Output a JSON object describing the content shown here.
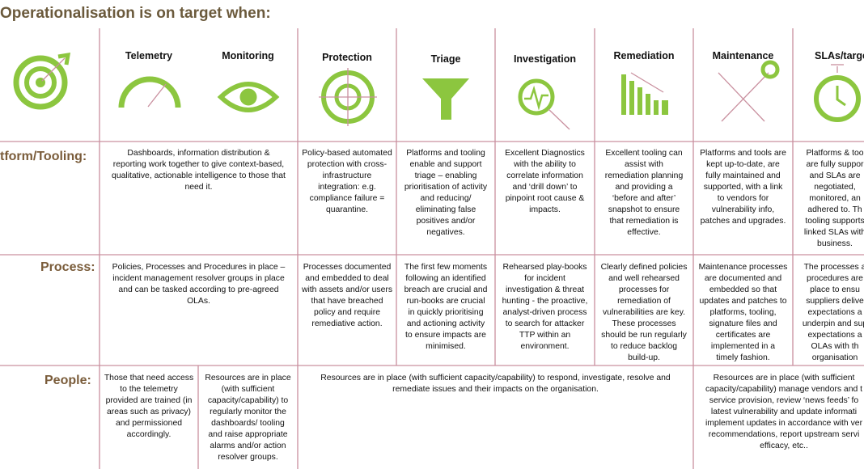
{
  "title": "Operationalisation is on target when:",
  "header": {
    "columns": [
      "Telemetry",
      "Monitoring",
      "Protection",
      "Triage",
      "Investigation",
      "Remediation",
      "Maintenance",
      "SLAs/targe"
    ]
  },
  "rows": [
    {
      "label": "tform/Tooling:",
      "cells": [
        "Dashboards, information distribution &\nreporting work together to give context-based,\nqualitative, actionable intelligence to those that\nneed it.",
        "Policy-based automated\nprotection with cross-\ninfrastructure\nintegration: e.g.\ncompliance failure =\nquarantine.",
        "Platforms and tooling\nenable and support\ntriage – enabling\nprioritisation of activity\nand reducing/\neliminating false\npositives and/or\nnegatives.",
        "Excellent Diagnostics\nwith the ability to\ncorrelate information\nand ‘drill down’ to\npinpoint root cause &\nimpacts.",
        "Excellent tooling can\nassist with\nremediation planning\nand providing a\n‘before and after’\nsnapshot to ensure\nthat remediation is\neffective.",
        "Platforms and tools are\nkept up-to-date, are\nfully maintained and\nsupported, with a link\nto vendors for\nvulnerability info,\npatches and upgrades.",
        "Platforms & too\nare fully suppor\nand SLAs are\nnegotiated,\nmonitored, an\nadhered to. Th\ntooling supports\nlinked SLAs with\nbusiness."
      ]
    },
    {
      "label": "Process:",
      "cells": [
        "Policies, Processes and Procedures in place –\nincident management resolver groups in place\nand can be tasked according to pre-agreed\nOLAs.",
        "Processes documented\nand embedded to deal\nwith assets and/or users\nthat have breached\npolicy and require\nremediative action.",
        "The first few moments\nfollowing an identified\nbreach are crucial and\nrun-books are crucial\nin quickly prioritising\nand actioning activity\nto ensure impacts are\nminimised.",
        "Rehearsed play-books\nfor incident\ninvestigation & threat\nhunting - the proactive,\nanalyst-driven process\nto search for attacker\nTTP within an\nenvironment.",
        "Clearly defined policies\nand well rehearsed\nprocesses for\nremediation of\nvulnerabilities are key.\nThese processes\nshould be run regularly\nto reduce backlog\nbuild-up.",
        "Maintenance processes\nare documented and\nembedded so that\nupdates and patches to\nplatforms, tooling,\nsignature files and\ncertificates are\nimplemented in a\ntimely fashion.",
        "The processes a\nprocedures are\nplace to ensu\nsuppliers delive\nexpectations a\nunderpin and sup\nexpectations a\nOLAs with th\norganisation"
      ]
    },
    {
      "label": "People:",
      "cells": [
        "Those that need access\nto the telemetry\nprovided are trained (in\nareas such as privacy)\nand  permissioned\naccordingly.",
        "Resources are in place\n(with sufficient\ncapacity/capability) to\nregularly monitor the\ndashboards/ tooling\nand raise appropriate\nalarms and/or action\nresolver groups.",
        "Resources are in place (with sufficient capacity/capability) to respond, investigate, resolve and\nremediate issues and their impacts on the organisation.",
        "Resources are in place (with sufficient\ncapacity/capability) manage vendors and t\nservice provision, review ‘news feeds’ fo\nlatest vulnerability and update informati\nimplement updates in accordance with ver\nrecommendations, report upstream servi\nefficacy, etc.."
      ]
    }
  ]
}
